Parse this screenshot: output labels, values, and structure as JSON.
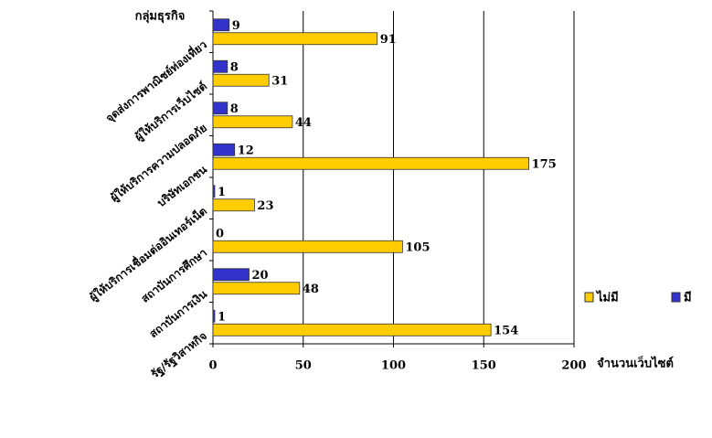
{
  "chart_data": {
    "type": "hbar",
    "y_label": "กลุ่มธุรกิจ",
    "x_label": "จำนวนเว็บไซต์",
    "categories": [
      "รัฐ/รัฐวิสาหกิจ",
      "สถาบันการเงิน",
      "สถาบันการศึกษา",
      "ผู้ให้บริการเชื่อมต่ออินเทอร์เน็ต",
      "บริษัทเอกชน",
      "ผู้ให้บริการความปลอดภัย",
      "ผู้ให้บริการเว็บไซต์",
      "จุดส่งการพาณิชย์ท่องเที่ยว"
    ],
    "series": [
      {
        "name": "ไม่มี",
        "color": "#ffcc00",
        "values": [
          154,
          48,
          105,
          23,
          175,
          44,
          31,
          91
        ]
      },
      {
        "name": "มี",
        "color": "#3333cc",
        "values": [
          1,
          20,
          0,
          1,
          12,
          8,
          8,
          9
        ]
      }
    ],
    "xlim": [
      0,
      200
    ],
    "xticks": [
      0,
      50,
      100,
      150,
      200
    ],
    "grid": true,
    "legend": "right"
  }
}
